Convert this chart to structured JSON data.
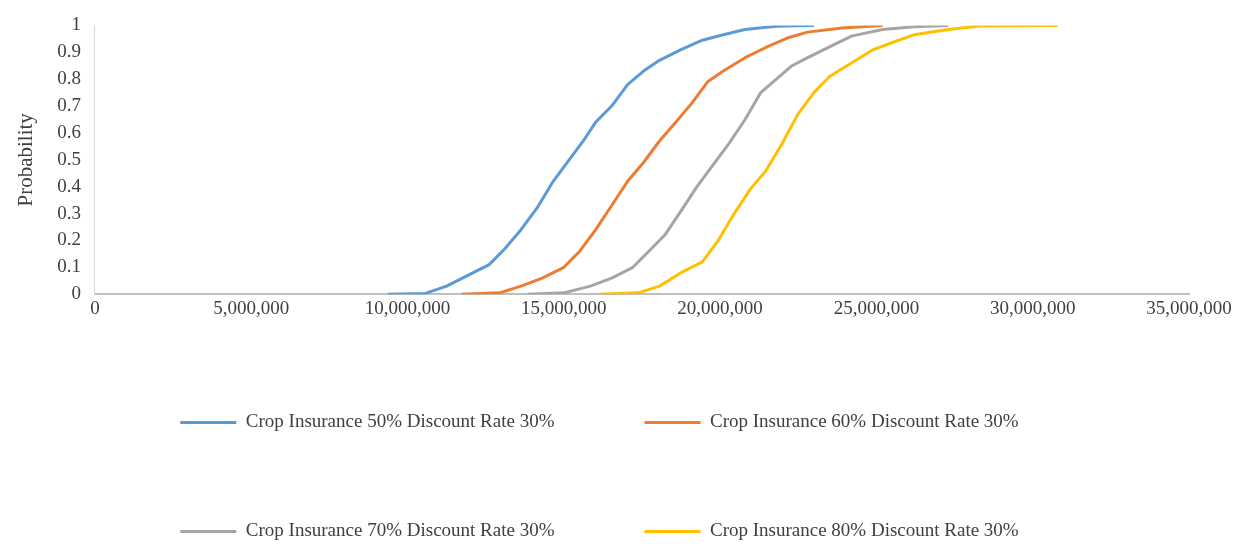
{
  "chart_data": {
    "type": "line",
    "ylabel": "Probability",
    "xlim": [
      0,
      35000000
    ],
    "xticks": [
      0,
      {
        "value": 5000000,
        "label": "5,000,000"
      },
      {
        "value": 10000000,
        "label": "10,000,000"
      },
      {
        "value": 15000000,
        "label": "15,000,000"
      },
      {
        "value": 20000000,
        "label": "20,000,000"
      },
      {
        "value": 25000000,
        "label": "25,000,000"
      },
      {
        "value": 30000000,
        "label": "30,000,000"
      },
      {
        "value": 35000000,
        "label": "35,000,000"
      }
    ],
    "ylim": [
      0,
      1
    ],
    "yticks": [
      0,
      0.1,
      0.2,
      0.3,
      0.4,
      0.5,
      0.6,
      0.7,
      0.8,
      0.9,
      1
    ],
    "grid": false,
    "legend": "bottom",
    "marker": "none",
    "line_style": "solid",
    "series": [
      {
        "name": "Crop Insurance 50% Discount Rate 30%",
        "color": "#5b9bd5",
        "x": [
          9370000,
          10570000,
          11250000,
          11930000,
          12610000,
          13120000,
          13630000,
          14140000,
          14660000,
          15170000,
          15680000,
          16020000,
          16530000,
          17040000,
          17550000,
          18060000,
          18750000,
          19430000,
          20100000,
          20800000,
          21800000,
          22800000,
          23000000
        ],
        "values": [
          0,
          0.003,
          0.03,
          0.07,
          0.11,
          0.17,
          0.24,
          0.32,
          0.42,
          0.5,
          0.58,
          0.64,
          0.7,
          0.78,
          0.83,
          0.87,
          0.91,
          0.945,
          0.965,
          0.985,
          0.997,
          1,
          1
        ]
      },
      {
        "name": "Crop Insurance 60% Discount Rate 30%",
        "color": "#ed7d31",
        "x": [
          11720000,
          12950000,
          13630000,
          14310000,
          15000000,
          15510000,
          16020000,
          16530000,
          17040000,
          17550000,
          18060000,
          18580000,
          19090000,
          19600000,
          20100000,
          20800000,
          21500000,
          22200000,
          22800000,
          23900000,
          25200000
        ],
        "values": [
          0,
          0.005,
          0.03,
          0.06,
          0.1,
          0.16,
          0.24,
          0.33,
          0.42,
          0.49,
          0.57,
          0.64,
          0.71,
          0.79,
          0.83,
          0.88,
          0.92,
          0.955,
          0.975,
          0.99,
          1
        ]
      },
      {
        "name": "Crop Insurance 70% Discount Rate 30%",
        "color": "#a5a5a5",
        "x": [
          13840000,
          15000000,
          15850000,
          16530000,
          17210000,
          17720000,
          18230000,
          18750000,
          19260000,
          19770000,
          20280000,
          20800000,
          21300000,
          21800000,
          22300000,
          22800000,
          23500000,
          24200000,
          25200000,
          26200000,
          27300000
        ],
        "values": [
          0,
          0.005,
          0.03,
          0.06,
          0.1,
          0.16,
          0.22,
          0.31,
          0.4,
          0.48,
          0.56,
          0.65,
          0.75,
          0.8,
          0.85,
          0.88,
          0.92,
          0.96,
          0.985,
          0.995,
          1
        ]
      },
      {
        "name": "Crop Insurance 80% Discount Rate 30%",
        "color": "#ffc000",
        "x": [
          16120000,
          17380000,
          18060000,
          18750000,
          19430000,
          19940000,
          20450000,
          20960000,
          21470000,
          21980000,
          22490000,
          23000000,
          23500000,
          24200000,
          24900000,
          25600000,
          26200000,
          27300000,
          28300000,
          30800000
        ],
        "values": [
          0,
          0.005,
          0.03,
          0.08,
          0.12,
          0.2,
          0.3,
          0.39,
          0.46,
          0.56,
          0.67,
          0.75,
          0.81,
          0.86,
          0.91,
          0.94,
          0.965,
          0.985,
          0.998,
          1
        ]
      }
    ]
  }
}
